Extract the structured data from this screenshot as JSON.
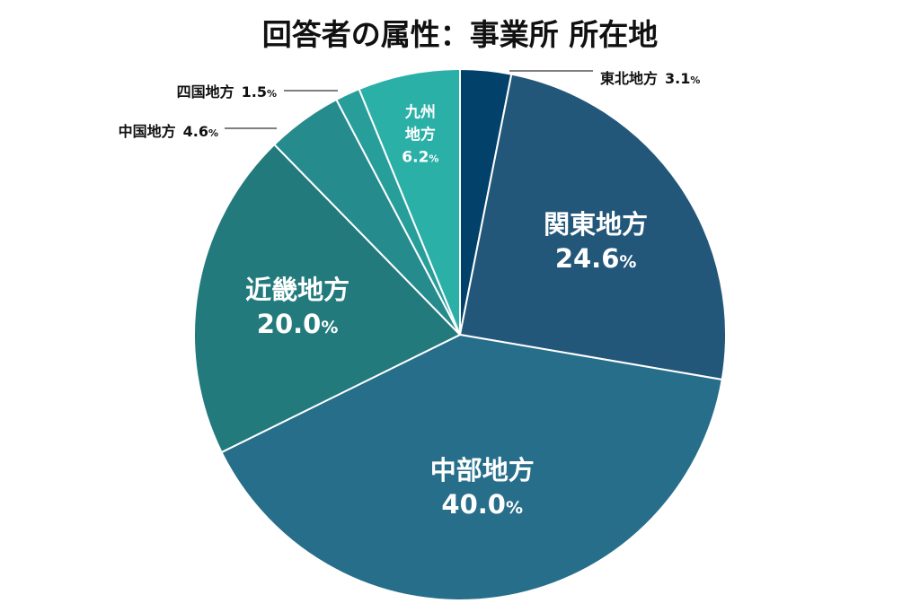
{
  "chart_data": {
    "type": "pie",
    "title": "回答者の属性：事業所 所在地",
    "unit": "%",
    "slices": [
      {
        "label": "東北地方",
        "value": 3.1,
        "color": "#02426a",
        "placement": "outside",
        "name_lines": [
          "東北地方"
        ]
      },
      {
        "label": "関東地方",
        "value": 24.6,
        "color": "#23577a",
        "placement": "inside",
        "name_lines": [
          "関東地方"
        ]
      },
      {
        "label": "中部地方",
        "value": 40.0,
        "color": "#266e8a",
        "placement": "inside",
        "name_lines": [
          "中部地方"
        ]
      },
      {
        "label": "近畿地方",
        "value": 20.0,
        "color": "#237a7c",
        "placement": "inside",
        "name_lines": [
          "近畿地方"
        ]
      },
      {
        "label": "中国地方",
        "value": 4.6,
        "color": "#268b8d",
        "placement": "outside",
        "name_lines": [
          "中国地方"
        ]
      },
      {
        "label": "四国地方",
        "value": 1.5,
        "color": "#289e9b",
        "placement": "outside",
        "name_lines": [
          "四国地方"
        ]
      },
      {
        "label": "九州地方",
        "value": 6.2,
        "color": "#2bb0a8",
        "placement": "inside",
        "name_lines": [
          "九州",
          "地方"
        ]
      }
    ]
  }
}
